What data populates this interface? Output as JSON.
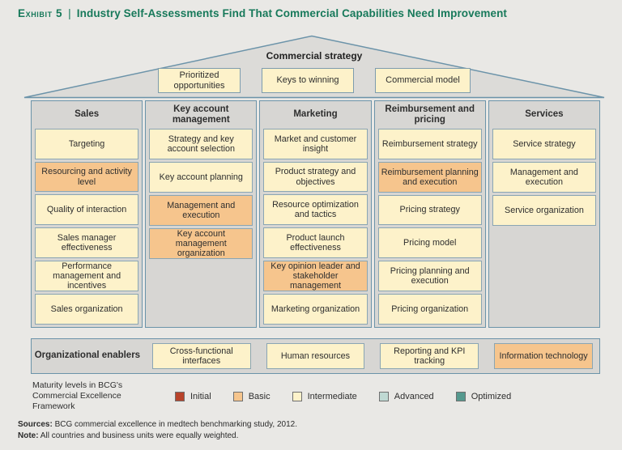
{
  "title": {
    "exhibit": "Exhibit 5",
    "separator": "|",
    "text": "Industry Self-Assessments Find That Commercial Capabilities Need Improvement"
  },
  "roof": {
    "label": "Commercial strategy",
    "boxes": [
      {
        "label": "Prioritized opportunities",
        "level": "intermediate"
      },
      {
        "label": "Keys to winning",
        "level": "intermediate"
      },
      {
        "label": "Commercial model",
        "level": "intermediate"
      }
    ]
  },
  "columns": [
    {
      "header": "Sales",
      "boxes": [
        {
          "label": "Targeting",
          "level": "intermediate"
        },
        {
          "label": "Resourcing and activity level",
          "level": "basic"
        },
        {
          "label": "Quality of interaction",
          "level": "intermediate"
        },
        {
          "label": "Sales manager effectiveness",
          "level": "intermediate"
        },
        {
          "label": "Performance management and incentives",
          "level": "intermediate"
        },
        {
          "label": "Sales organization",
          "level": "intermediate"
        }
      ]
    },
    {
      "header": "Key account management",
      "boxes": [
        {
          "label": "Strategy and key account selection",
          "level": "intermediate"
        },
        {
          "label": "Key account planning",
          "level": "intermediate"
        },
        {
          "label": "Management and execution",
          "level": "basic"
        },
        {
          "label": "Key account management organization",
          "level": "basic"
        }
      ]
    },
    {
      "header": "Marketing",
      "boxes": [
        {
          "label": "Market and customer insight",
          "level": "intermediate"
        },
        {
          "label": "Product strategy and objectives",
          "level": "intermediate"
        },
        {
          "label": "Resource optimization and tactics",
          "level": "intermediate"
        },
        {
          "label": "Product launch effectiveness",
          "level": "intermediate"
        },
        {
          "label": "Key opinion leader and stakeholder management",
          "level": "basic"
        },
        {
          "label": "Marketing organization",
          "level": "intermediate"
        }
      ]
    },
    {
      "header": "Reimbursement and pricing",
      "boxes": [
        {
          "label": "Reimbursement strategy",
          "level": "intermediate"
        },
        {
          "label": "Reimbursement planning and execution",
          "level": "basic"
        },
        {
          "label": "Pricing strategy",
          "level": "intermediate"
        },
        {
          "label": "Pricing model",
          "level": "intermediate"
        },
        {
          "label": "Pricing planning and execution",
          "level": "intermediate"
        },
        {
          "label": "Pricing organization",
          "level": "intermediate"
        }
      ]
    },
    {
      "header": "Services",
      "boxes": [
        {
          "label": "Service strategy",
          "level": "intermediate"
        },
        {
          "label": "Management and execution",
          "level": "intermediate"
        },
        {
          "label": "Service organization",
          "level": "intermediate"
        }
      ]
    }
  ],
  "enablers": {
    "header": "Organizational enablers",
    "boxes": [
      {
        "label": "Cross-functional interfaces",
        "level": "intermediate"
      },
      {
        "label": "Human resources",
        "level": "intermediate"
      },
      {
        "label": "Reporting and KPI tracking",
        "level": "intermediate"
      },
      {
        "label": "Information technology",
        "level": "basic"
      }
    ]
  },
  "legend": {
    "caption": "Maturity levels in BCG's Commercial Excellence Framework",
    "items": [
      {
        "label": "Initial",
        "level": "initial"
      },
      {
        "label": "Basic",
        "level": "basic"
      },
      {
        "label": "Intermediate",
        "level": "intermediate"
      },
      {
        "label": "Advanced",
        "level": "advanced"
      },
      {
        "label": "Optimized",
        "level": "optimized"
      }
    ]
  },
  "footer": {
    "sources_label": "Sources:",
    "sources": "BCG commercial excellence in medtech benchmarking study, 2012.",
    "note_label": "Note:",
    "note": "All countries and business units were equally weighted."
  },
  "colors": {
    "title_green": "#17795a",
    "background": "#e9e8e5",
    "panel_gray": "#d7d6d3",
    "roof_gray": "#dcdbd8",
    "outline_blue": "#6b93a9",
    "box_border": "#8aa5b3",
    "level_initial": "#b8432a",
    "level_basic": "#f6c58d",
    "level_intermediate": "#fdf2ca",
    "level_advanced": "#bfd9d3",
    "level_optimized": "#55998e"
  }
}
